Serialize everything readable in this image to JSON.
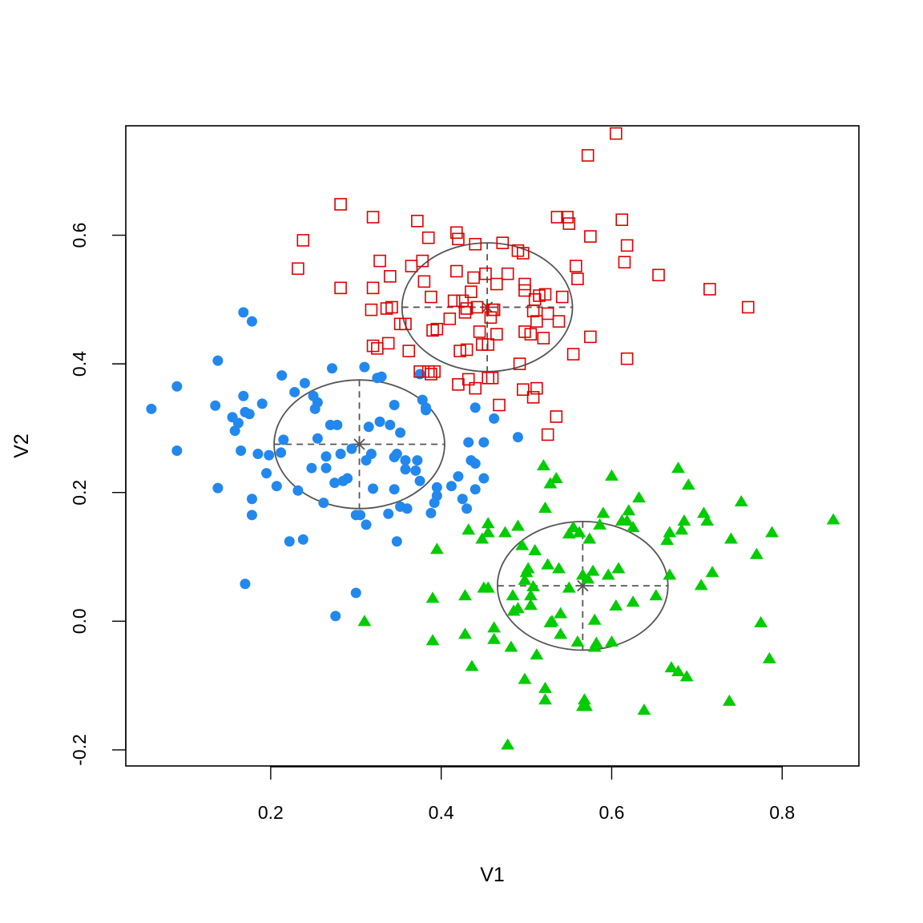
{
  "chart_data": {
    "type": "scatter",
    "title": "",
    "xlabel": "V1",
    "ylabel": "V2",
    "xlim": [
      0.03,
      0.89
    ],
    "ylim": [
      -0.225,
      0.77
    ],
    "x_ticks": [
      0.2,
      0.4,
      0.6,
      0.8
    ],
    "x_tick_labels": [
      "0.2",
      "0.4",
      "0.6",
      "0.8"
    ],
    "y_ticks": [
      -0.2,
      0.0,
      0.2,
      0.4,
      0.6
    ],
    "y_tick_labels": [
      "-0.2",
      "0.0",
      "0.2",
      "0.4",
      "0.6"
    ],
    "grid": false,
    "colors": {
      "cluster_blue": "#2288ee",
      "cluster_red": "#dd0000",
      "cluster_green": "#00cc00",
      "overlay": "#555555",
      "frame": "#000000"
    },
    "series": [
      {
        "marker": "filled-circle",
        "color": "#2288ee",
        "points": [
          [
            0.06,
            0.33
          ],
          [
            0.09,
            0.365
          ],
          [
            0.09,
            0.265
          ],
          [
            0.135,
            0.335
          ],
          [
            0.138,
            0.405
          ],
          [
            0.138,
            0.207
          ],
          [
            0.155,
            0.317
          ],
          [
            0.158,
            0.296
          ],
          [
            0.162,
            0.308
          ],
          [
            0.165,
            0.265
          ],
          [
            0.168,
            0.35
          ],
          [
            0.168,
            0.48
          ],
          [
            0.17,
            0.325
          ],
          [
            0.17,
            0.058
          ],
          [
            0.175,
            0.322
          ],
          [
            0.178,
            0.466
          ],
          [
            0.178,
            0.19
          ],
          [
            0.178,
            0.165
          ],
          [
            0.185,
            0.26
          ],
          [
            0.19,
            0.338
          ],
          [
            0.195,
            0.23
          ],
          [
            0.198,
            0.258
          ],
          [
            0.207,
            0.21
          ],
          [
            0.212,
            0.262
          ],
          [
            0.213,
            0.382
          ],
          [
            0.215,
            0.282
          ],
          [
            0.222,
            0.124
          ],
          [
            0.228,
            0.356
          ],
          [
            0.232,
            0.203
          ],
          [
            0.238,
            0.127
          ],
          [
            0.24,
            0.37
          ],
          [
            0.248,
            0.238
          ],
          [
            0.25,
            0.35
          ],
          [
            0.252,
            0.33
          ],
          [
            0.255,
            0.34
          ],
          [
            0.255,
            0.284
          ],
          [
            0.262,
            0.184
          ],
          [
            0.265,
            0.238
          ],
          [
            0.27,
            0.305
          ],
          [
            0.272,
            0.393
          ],
          [
            0.275,
            0.215
          ],
          [
            0.276,
            0.008
          ],
          [
            0.278,
            0.305
          ],
          [
            0.282,
            0.26
          ],
          [
            0.285,
            0.218
          ],
          [
            0.29,
            0.222
          ],
          [
            0.3,
            0.165
          ],
          [
            0.3,
            0.044
          ],
          [
            0.31,
            0.395
          ],
          [
            0.312,
            0.25
          ],
          [
            0.312,
            0.15
          ],
          [
            0.315,
            0.302
          ],
          [
            0.318,
            0.26
          ],
          [
            0.32,
            0.206
          ],
          [
            0.325,
            0.378
          ],
          [
            0.328,
            0.31
          ],
          [
            0.33,
            0.38
          ],
          [
            0.338,
            0.167
          ],
          [
            0.34,
            0.305
          ],
          [
            0.345,
            0.255
          ],
          [
            0.345,
            0.336
          ],
          [
            0.348,
            0.124
          ],
          [
            0.348,
            0.26
          ],
          [
            0.352,
            0.178
          ],
          [
            0.352,
            0.293
          ],
          [
            0.358,
            0.25
          ],
          [
            0.358,
            0.236
          ],
          [
            0.37,
            0.234
          ],
          [
            0.372,
            0.25
          ],
          [
            0.375,
            0.218
          ],
          [
            0.375,
            0.384
          ],
          [
            0.378,
            0.344
          ],
          [
            0.382,
            0.332
          ],
          [
            0.382,
            0.328
          ],
          [
            0.388,
            0.168
          ],
          [
            0.392,
            0.184
          ],
          [
            0.395,
            0.195
          ],
          [
            0.395,
            0.208
          ],
          [
            0.412,
            0.21
          ],
          [
            0.42,
            0.225
          ],
          [
            0.425,
            0.19
          ],
          [
            0.43,
            0.175
          ],
          [
            0.432,
            0.278
          ],
          [
            0.44,
            0.332
          ],
          [
            0.44,
            0.245
          ],
          [
            0.45,
            0.278
          ],
          [
            0.45,
            0.222
          ],
          [
            0.462,
            0.315
          ],
          [
            0.49,
            0.286
          ],
          [
            0.305,
            0.165
          ],
          [
            0.345,
            0.205
          ],
          [
            0.36,
            0.175
          ],
          [
            0.265,
            0.256
          ],
          [
            0.295,
            0.268
          ],
          [
            0.44,
            0.205
          ],
          [
            0.435,
            0.25
          ]
        ]
      },
      {
        "marker": "open-square",
        "color": "#dd0000",
        "points": [
          [
            0.232,
            0.548
          ],
          [
            0.238,
            0.592
          ],
          [
            0.282,
            0.648
          ],
          [
            0.282,
            0.518
          ],
          [
            0.318,
            0.484
          ],
          [
            0.32,
            0.628
          ],
          [
            0.32,
            0.518
          ],
          [
            0.32,
            0.428
          ],
          [
            0.325,
            0.424
          ],
          [
            0.328,
            0.56
          ],
          [
            0.336,
            0.486
          ],
          [
            0.338,
            0.432
          ],
          [
            0.34,
            0.536
          ],
          [
            0.342,
            0.488
          ],
          [
            0.352,
            0.462
          ],
          [
            0.358,
            0.462
          ],
          [
            0.362,
            0.42
          ],
          [
            0.365,
            0.552
          ],
          [
            0.372,
            0.622
          ],
          [
            0.375,
            0.388
          ],
          [
            0.378,
            0.56
          ],
          [
            0.38,
            0.528
          ],
          [
            0.385,
            0.596
          ],
          [
            0.385,
            0.388
          ],
          [
            0.388,
            0.504
          ],
          [
            0.388,
            0.384
          ],
          [
            0.39,
            0.452
          ],
          [
            0.392,
            0.388
          ],
          [
            0.395,
            0.454
          ],
          [
            0.415,
            0.498
          ],
          [
            0.418,
            0.544
          ],
          [
            0.418,
            0.604
          ],
          [
            0.42,
            0.594
          ],
          [
            0.42,
            0.368
          ],
          [
            0.422,
            0.42
          ],
          [
            0.425,
            0.498
          ],
          [
            0.428,
            0.48
          ],
          [
            0.43,
            0.486
          ],
          [
            0.43,
            0.422
          ],
          [
            0.432,
            0.376
          ],
          [
            0.435,
            0.512
          ],
          [
            0.438,
            0.534
          ],
          [
            0.44,
            0.586
          ],
          [
            0.44,
            0.362
          ],
          [
            0.442,
            0.488
          ],
          [
            0.445,
            0.45
          ],
          [
            0.452,
            0.54
          ],
          [
            0.455,
            0.378
          ],
          [
            0.455,
            0.43
          ],
          [
            0.458,
            0.472
          ],
          [
            0.46,
            0.378
          ],
          [
            0.462,
            0.484
          ],
          [
            0.465,
            0.524
          ],
          [
            0.465,
            0.446
          ],
          [
            0.468,
            0.336
          ],
          [
            0.472,
            0.588
          ],
          [
            0.478,
            0.54
          ],
          [
            0.49,
            0.576
          ],
          [
            0.492,
            0.4
          ],
          [
            0.496,
            0.36
          ],
          [
            0.496,
            0.572
          ],
          [
            0.498,
            0.524
          ],
          [
            0.498,
            0.514
          ],
          [
            0.498,
            0.45
          ],
          [
            0.505,
            0.446
          ],
          [
            0.508,
            0.348
          ],
          [
            0.508,
            0.482
          ],
          [
            0.51,
            0.5
          ],
          [
            0.512,
            0.362
          ],
          [
            0.512,
            0.466
          ],
          [
            0.515,
            0.506
          ],
          [
            0.52,
            0.44
          ],
          [
            0.522,
            0.508
          ],
          [
            0.525,
            0.478
          ],
          [
            0.535,
            0.318
          ],
          [
            0.536,
            0.628
          ],
          [
            0.538,
            0.466
          ],
          [
            0.542,
            0.504
          ],
          [
            0.548,
            0.628
          ],
          [
            0.55,
            0.618
          ],
          [
            0.555,
            0.415
          ],
          [
            0.558,
            0.552
          ],
          [
            0.56,
            0.532
          ],
          [
            0.572,
            0.724
          ],
          [
            0.575,
            0.442
          ],
          [
            0.575,
            0.598
          ],
          [
            0.605,
            0.758
          ],
          [
            0.612,
            0.624
          ],
          [
            0.615,
            0.558
          ],
          [
            0.618,
            0.584
          ],
          [
            0.618,
            0.408
          ],
          [
            0.655,
            0.538
          ],
          [
            0.715,
            0.516
          ],
          [
            0.76,
            0.488
          ],
          [
            0.525,
            0.29
          ],
          [
            0.46,
            0.484
          ],
          [
            0.448,
            0.43
          ],
          [
            0.41,
            0.47
          ]
        ]
      },
      {
        "marker": "filled-triangle",
        "color": "#00cc00",
        "points": [
          [
            0.31,
            0.0
          ],
          [
            0.39,
            0.036
          ],
          [
            0.39,
            -0.03
          ],
          [
            0.395,
            0.112
          ],
          [
            0.428,
            0.04
          ],
          [
            0.428,
            -0.02
          ],
          [
            0.432,
            0.142
          ],
          [
            0.436,
            -0.07
          ],
          [
            0.448,
            0.128
          ],
          [
            0.45,
            0.052
          ],
          [
            0.455,
            0.152
          ],
          [
            0.455,
            0.138
          ],
          [
            0.462,
            -0.01
          ],
          [
            0.462,
            -0.028
          ],
          [
            0.475,
            0.138
          ],
          [
            0.478,
            -0.192
          ],
          [
            0.482,
            -0.04
          ],
          [
            0.484,
            0.04
          ],
          [
            0.485,
            0.016
          ],
          [
            0.49,
            0.148
          ],
          [
            0.49,
            0.02
          ],
          [
            0.495,
            0.118
          ],
          [
            0.498,
            -0.09
          ],
          [
            0.498,
            0.064
          ],
          [
            0.5,
            0.076
          ],
          [
            0.502,
            0.082
          ],
          [
            0.505,
            0.04
          ],
          [
            0.505,
            0.025
          ],
          [
            0.508,
            0.054
          ],
          [
            0.51,
            0.11
          ],
          [
            0.512,
            -0.052
          ],
          [
            0.52,
            0.242
          ],
          [
            0.522,
            0.176
          ],
          [
            0.522,
            -0.104
          ],
          [
            0.522,
            -0.122
          ],
          [
            0.525,
            0.088
          ],
          [
            0.528,
            0.214
          ],
          [
            0.528,
            -0.002
          ],
          [
            0.535,
            0.222
          ],
          [
            0.538,
            0.082
          ],
          [
            0.54,
            0.012
          ],
          [
            0.54,
            -0.02
          ],
          [
            0.55,
            0.136
          ],
          [
            0.55,
            0.052
          ],
          [
            0.555,
            0.146
          ],
          [
            0.56,
            -0.032
          ],
          [
            0.562,
            0.138
          ],
          [
            0.566,
            0.072
          ],
          [
            0.566,
            -0.132
          ],
          [
            0.568,
            -0.122
          ],
          [
            0.57,
            -0.132
          ],
          [
            0.572,
            0.066
          ],
          [
            0.574,
            0.128
          ],
          [
            0.578,
            0.078
          ],
          [
            0.58,
            0.002
          ],
          [
            0.582,
            -0.034
          ],
          [
            0.586,
            0.15
          ],
          [
            0.59,
            0.168
          ],
          [
            0.596,
            0.072
          ],
          [
            0.6,
            0.226
          ],
          [
            0.6,
            -0.032
          ],
          [
            0.605,
            0.024
          ],
          [
            0.608,
            0.082
          ],
          [
            0.612,
            0.156
          ],
          [
            0.618,
            0.156
          ],
          [
            0.62,
            0.172
          ],
          [
            0.625,
            0.146
          ],
          [
            0.632,
            0.192
          ],
          [
            0.638,
            -0.138
          ],
          [
            0.652,
            0.04
          ],
          [
            0.665,
            0.126
          ],
          [
            0.668,
            0.138
          ],
          [
            0.668,
            0.072
          ],
          [
            0.67,
            -0.072
          ],
          [
            0.678,
            -0.078
          ],
          [
            0.678,
            0.238
          ],
          [
            0.682,
            0.142
          ],
          [
            0.685,
            0.156
          ],
          [
            0.688,
            -0.086
          ],
          [
            0.69,
            0.212
          ],
          [
            0.705,
            0.056
          ],
          [
            0.708,
            0.168
          ],
          [
            0.712,
            0.156
          ],
          [
            0.718,
            0.076
          ],
          [
            0.738,
            -0.124
          ],
          [
            0.74,
            0.128
          ],
          [
            0.752,
            0.186
          ],
          [
            0.77,
            0.104
          ],
          [
            0.775,
            -0.002
          ],
          [
            0.785,
            -0.058
          ],
          [
            0.788,
            0.138
          ],
          [
            0.86,
            0.158
          ],
          [
            0.455,
            0.052
          ],
          [
            0.58,
            -0.04
          ],
          [
            0.53,
            0.0
          ],
          [
            0.625,
            0.03
          ]
        ]
      }
    ],
    "ellipses": [
      {
        "center": [
          0.304,
          0.275
        ],
        "semi_axis_x": 0.1,
        "semi_axis_y": 0.1
      },
      {
        "center": [
          0.454,
          0.488
        ],
        "semi_axis_x": 0.1,
        "semi_axis_y": 0.1
      },
      {
        "center": [
          0.566,
          0.055
        ],
        "semi_axis_x": 0.1,
        "semi_axis_y": 0.1
      }
    ]
  }
}
